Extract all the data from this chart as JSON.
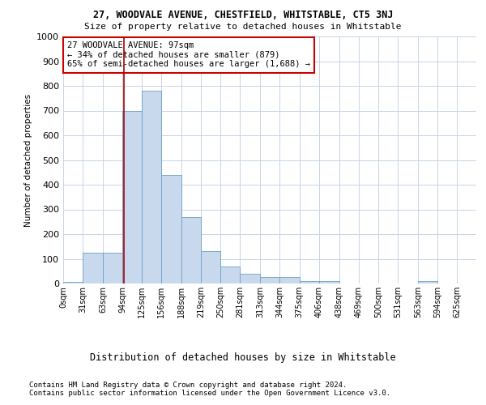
{
  "title": "27, WOODVALE AVENUE, CHESTFIELD, WHITSTABLE, CT5 3NJ",
  "subtitle": "Size of property relative to detached houses in Whitstable",
  "xlabel": "Distribution of detached houses by size in Whitstable",
  "ylabel": "Number of detached properties",
  "bar_values": [
    5,
    125,
    125,
    700,
    780,
    440,
    270,
    130,
    70,
    40,
    25,
    25,
    10,
    10,
    0,
    0,
    0,
    0,
    10,
    0,
    0
  ],
  "bar_labels": [
    "0sqm",
    "31sqm",
    "63sqm",
    "94sqm",
    "125sqm",
    "156sqm",
    "188sqm",
    "219sqm",
    "250sqm",
    "281sqm",
    "313sqm",
    "344sqm",
    "375sqm",
    "406sqm",
    "438sqm",
    "469sqm",
    "500sqm",
    "531sqm",
    "563sqm",
    "594sqm",
    "625sqm"
  ],
  "bin_edges": [
    0,
    31,
    63,
    94,
    125,
    156,
    188,
    219,
    250,
    281,
    313,
    344,
    375,
    406,
    438,
    469,
    500,
    531,
    563,
    594,
    625,
    656
  ],
  "bar_color": "#c8d9ee",
  "bar_edgecolor": "#6b9fc8",
  "vline_x": 97,
  "vline_color": "#aa0000",
  "ylim": [
    0,
    1000
  ],
  "yticks": [
    0,
    100,
    200,
    300,
    400,
    500,
    600,
    700,
    800,
    900,
    1000
  ],
  "annotation_text": "27 WOODVALE AVENUE: 97sqm\n← 34% of detached houses are smaller (879)\n65% of semi-detached houses are larger (1,688) →",
  "annotation_box_color": "#ffffff",
  "annotation_box_edgecolor": "#cc0000",
  "footnote1": "Contains HM Land Registry data © Crown copyright and database right 2024.",
  "footnote2": "Contains public sector information licensed under the Open Government Licence v3.0.",
  "background_color": "#ffffff",
  "grid_color": "#c8d4e8"
}
